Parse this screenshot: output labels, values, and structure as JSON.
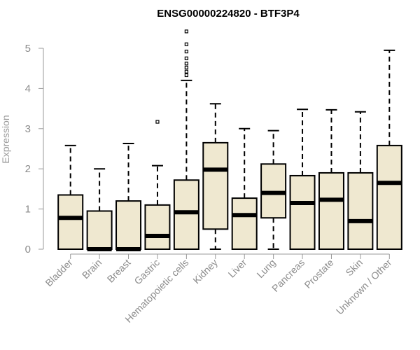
{
  "chart_data": {
    "type": "box",
    "title": "ENSG00000224820 - BTF3P4",
    "xlabel": "",
    "ylabel": "Expression",
    "ylim": [
      0,
      5.5
    ],
    "yticks": [
      "0",
      "1",
      "2",
      "3",
      "4",
      "5"
    ],
    "box_fill": "#efe8d0",
    "box_stroke": "#000000",
    "axis_color": "#999999",
    "categories": [
      "Bladder",
      "Brain",
      "Breast",
      "Gastric",
      "Hematopoietic cells",
      "Kidney",
      "Liver",
      "Lung",
      "Pancreas",
      "Prostate",
      "Skin",
      "Unknown / Other"
    ],
    "boxes": [
      {
        "q1": 0.0,
        "median": 0.78,
        "q3": 1.35,
        "whisker_low": 0.0,
        "whisker_high": 2.58,
        "outliers": []
      },
      {
        "q1": 0.0,
        "median": 0.0,
        "q3": 0.95,
        "whisker_low": 0.0,
        "whisker_high": 2.0,
        "outliers": []
      },
      {
        "q1": 0.0,
        "median": 0.0,
        "q3": 1.2,
        "whisker_low": 0.0,
        "whisker_high": 2.63,
        "outliers": []
      },
      {
        "q1": 0.0,
        "median": 0.33,
        "q3": 1.1,
        "whisker_low": 0.0,
        "whisker_high": 2.08,
        "outliers": [
          3.17
        ]
      },
      {
        "q1": 0.0,
        "median": 0.92,
        "q3": 1.72,
        "whisker_low": 0.0,
        "whisker_high": 4.2,
        "outliers": [
          4.33,
          4.42,
          4.52,
          4.62,
          4.75,
          4.92,
          5.1,
          5.42
        ]
      },
      {
        "q1": 0.5,
        "median": 1.98,
        "q3": 2.65,
        "whisker_low": 0.0,
        "whisker_high": 3.62,
        "outliers": []
      },
      {
        "q1": 0.0,
        "median": 0.85,
        "q3": 1.27,
        "whisker_low": 0.0,
        "whisker_high": 3.0,
        "outliers": []
      },
      {
        "q1": 0.78,
        "median": 1.4,
        "q3": 2.12,
        "whisker_low": 0.0,
        "whisker_high": 2.95,
        "outliers": []
      },
      {
        "q1": 0.0,
        "median": 1.15,
        "q3": 1.83,
        "whisker_low": 0.0,
        "whisker_high": 3.48,
        "outliers": []
      },
      {
        "q1": 0.0,
        "median": 1.23,
        "q3": 1.9,
        "whisker_low": 0.0,
        "whisker_high": 3.47,
        "outliers": []
      },
      {
        "q1": 0.0,
        "median": 0.7,
        "q3": 1.9,
        "whisker_low": 0.0,
        "whisker_high": 3.42,
        "outliers": []
      },
      {
        "q1": 0.0,
        "median": 1.65,
        "q3": 2.58,
        "whisker_low": 0.0,
        "whisker_high": 4.95,
        "outliers": []
      }
    ]
  }
}
